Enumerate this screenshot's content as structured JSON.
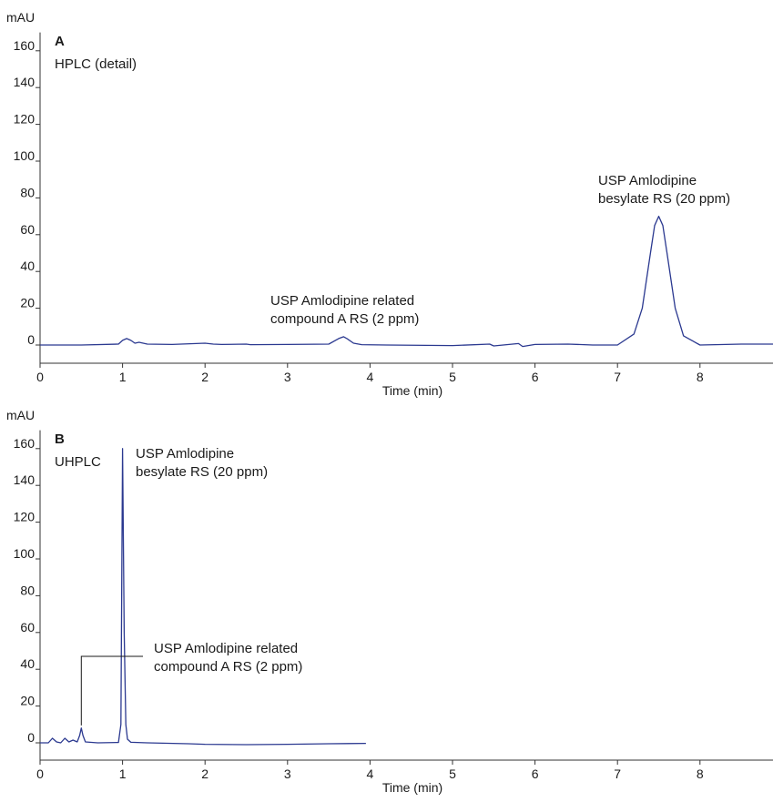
{
  "chart_data": [
    {
      "type": "line",
      "panel_label": "A",
      "title": "HPLC (detail)",
      "y_unit": "mAU",
      "xlabel": "Time (min)",
      "xlim": [
        0,
        8.9
      ],
      "ylim": [
        -10,
        170
      ],
      "x_ticks": [
        0,
        1,
        2,
        3,
        4,
        5,
        6,
        7,
        8
      ],
      "y_ticks": [
        0,
        20,
        40,
        60,
        80,
        100,
        120,
        140,
        160
      ],
      "grid": false,
      "line_color": "#2b3990",
      "series": [
        {
          "x": [
            0,
            0.5,
            0.95,
            1.0,
            1.05,
            1.1,
            1.15,
            1.2,
            1.3,
            1.6,
            2.0,
            2.1,
            2.2,
            2.5,
            2.55,
            3.0,
            3.5,
            3.62,
            3.68,
            3.72,
            3.8,
            3.9,
            4.2,
            5.0,
            5.45,
            5.5,
            5.8,
            5.85,
            6.0,
            6.4,
            6.7,
            7.0,
            7.2,
            7.3,
            7.4,
            7.45,
            7.5,
            7.55,
            7.6,
            7.7,
            7.8,
            8.0,
            8.5,
            8.9
          ],
          "y": [
            0,
            0,
            0.5,
            2.5,
            3.5,
            2.5,
            1.0,
            1.5,
            0.5,
            0.3,
            1.0,
            0.5,
            0.3,
            0.5,
            0.2,
            0.3,
            0.5,
            3.5,
            4.5,
            3.5,
            1.0,
            0.2,
            0,
            -0.3,
            0.5,
            -0.5,
            0.8,
            -0.8,
            0.3,
            0.5,
            0,
            0,
            6,
            20,
            50,
            65,
            70,
            65,
            50,
            20,
            5,
            0,
            0.5,
            0.5
          ]
        }
      ],
      "annotations": [
        {
          "lines": [
            "USP Amlodipine",
            "besylate RS (20 ppm)"
          ]
        },
        {
          "lines": [
            "USP Amlodipine related",
            "compound A RS (2 ppm)"
          ]
        }
      ]
    },
    {
      "type": "line",
      "panel_label": "B",
      "title": "UHPLC",
      "y_unit": "mAU",
      "xlabel": "Time (min)",
      "xlim": [
        0,
        8.9
      ],
      "ylim": [
        -10,
        170
      ],
      "x_ticks": [
        0,
        1,
        2,
        3,
        4,
        5,
        6,
        7,
        8
      ],
      "y_ticks": [
        0,
        20,
        40,
        60,
        80,
        100,
        120,
        140,
        160
      ],
      "grid": false,
      "line_color": "#2b3990",
      "series": [
        {
          "x": [
            0,
            0.1,
            0.15,
            0.2,
            0.25,
            0.3,
            0.35,
            0.4,
            0.45,
            0.48,
            0.5,
            0.52,
            0.55,
            0.7,
            0.95,
            0.98,
            1.0,
            1.02,
            1.04,
            1.06,
            1.1,
            1.3,
            1.8,
            2.0,
            2.5,
            3.0,
            3.5,
            3.95
          ],
          "y": [
            0,
            0,
            2.5,
            0.5,
            0,
            2.5,
            0.5,
            1.5,
            0.5,
            4,
            8,
            4,
            0.5,
            0,
            0.2,
            10,
            160,
            60,
            10,
            2,
            0.3,
            0,
            -0.5,
            -0.8,
            -1.0,
            -0.8,
            -0.5,
            -0.3
          ]
        }
      ],
      "annotations": [
        {
          "lines": [
            "USP Amlodipine",
            "besylate RS (20 ppm)"
          ]
        },
        {
          "lines": [
            "USP Amlodipine related",
            "compound A RS (2 ppm)"
          ]
        }
      ]
    }
  ]
}
